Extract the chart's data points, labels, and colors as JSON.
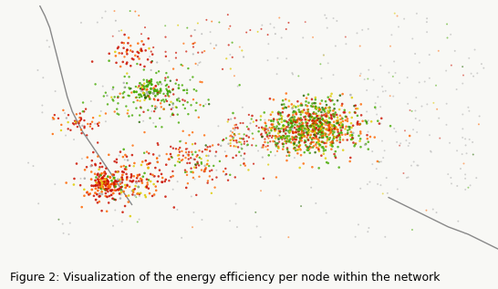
{
  "caption": "Figure 2: Visualization of the energy efficiency per node within the network",
  "caption_fontsize": 9,
  "figsize": [
    5.46,
    3.17
  ],
  "dpi": 100,
  "background_color": "#f8f8f5",
  "seed": 42,
  "xlim": [
    0,
    1
  ],
  "ylim": [
    0,
    1
  ],
  "colors_red": "#cc1100",
  "colors_orange": "#ff6600",
  "colors_yellow": "#ddcc00",
  "colors_green": "#44aa00",
  "colors_gray": "#aaaaaa",
  "colors_darkgreen": "#226600",
  "left_boundary_x": [
    0.08,
    0.09,
    0.1,
    0.105,
    0.11,
    0.115,
    0.12,
    0.125,
    0.13,
    0.135,
    0.14,
    0.145,
    0.155,
    0.165,
    0.175,
    0.185,
    0.195,
    0.205,
    0.215,
    0.225,
    0.235,
    0.245,
    0.255,
    0.265
  ],
  "left_boundary_y": [
    1.0,
    0.96,
    0.91,
    0.87,
    0.83,
    0.79,
    0.75,
    0.71,
    0.67,
    0.63,
    0.6,
    0.57,
    0.53,
    0.49,
    0.46,
    0.43,
    0.4,
    0.37,
    0.34,
    0.31,
    0.28,
    0.25,
    0.22,
    0.19
  ],
  "right_boundary_x": [
    0.78,
    0.82,
    0.86,
    0.9,
    0.94,
    0.97,
    1.0
  ],
  "right_boundary_y": [
    0.22,
    0.18,
    0.14,
    0.1,
    0.07,
    0.04,
    0.01
  ]
}
